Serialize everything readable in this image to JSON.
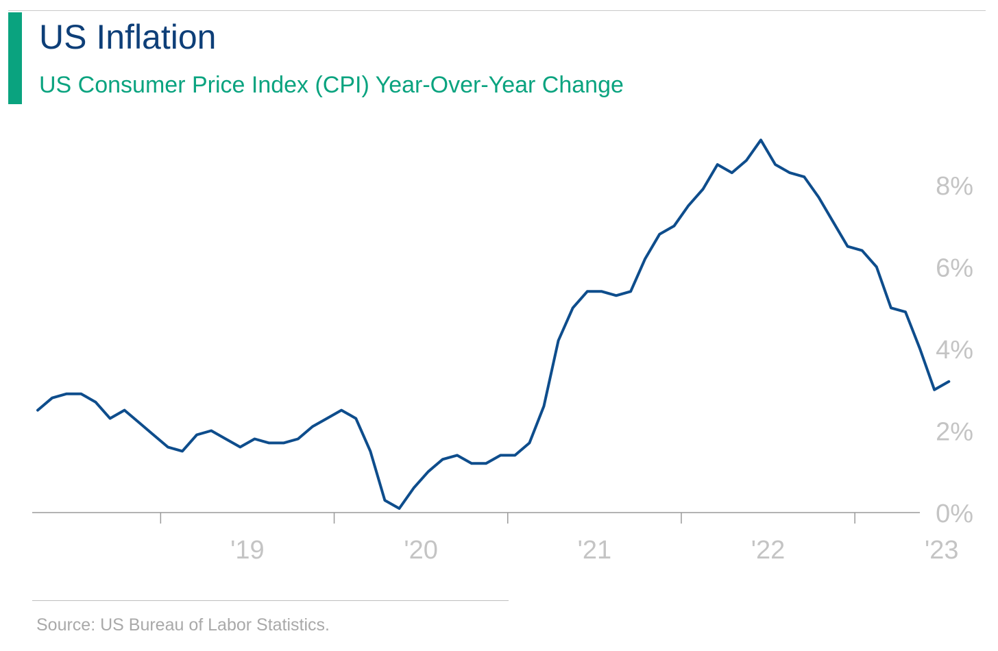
{
  "header": {
    "title": "US Inflation",
    "subtitle": "US Consumer Price Index (CPI) Year-Over-Year Change"
  },
  "footer": {
    "source": "Source: US Bureau of Labor Statistics."
  },
  "colors": {
    "accent": "#0aa37f",
    "title": "#0e3f78",
    "subtitle": "#0aa37f",
    "line": "#0e4d8c",
    "axis_text": "#c4c4c4",
    "axis_line": "#9a9a9a"
  },
  "chart_data": {
    "type": "line",
    "title": "US Inflation",
    "subtitle": "US Consumer Price Index (CPI) Year-Over-Year Change",
    "xlabel": "",
    "ylabel": "",
    "x_tick_labels": [
      "'19",
      "'20",
      "'21",
      "'22",
      "'23"
    ],
    "y_tick_labels": [
      "0%",
      "2%",
      "4%",
      "6%",
      "8%"
    ],
    "y_ticks": [
      0,
      2,
      4,
      6,
      8
    ],
    "ylim": [
      0,
      9.4
    ],
    "y_axis_position": "right",
    "grid": false,
    "legend": "none",
    "series": [
      {
        "x": [
          "2018-04",
          "2018-05",
          "2018-06",
          "2018-07",
          "2018-08",
          "2018-09",
          "2018-10",
          "2018-11",
          "2018-12",
          "2019-01",
          "2019-02",
          "2019-03",
          "2019-04",
          "2019-05",
          "2019-06",
          "2019-07",
          "2019-08",
          "2019-09",
          "2019-10",
          "2019-11",
          "2019-12",
          "2020-01",
          "2020-02",
          "2020-03",
          "2020-04",
          "2020-05",
          "2020-06",
          "2020-07",
          "2020-08",
          "2020-09",
          "2020-10",
          "2020-11",
          "2020-12",
          "2021-01",
          "2021-02",
          "2021-03",
          "2021-04",
          "2021-05",
          "2021-06",
          "2021-07",
          "2021-08",
          "2021-09",
          "2021-10",
          "2021-11",
          "2021-12",
          "2022-01",
          "2022-02",
          "2022-03",
          "2022-04",
          "2022-05",
          "2022-06",
          "2022-07",
          "2022-08",
          "2022-09",
          "2022-10",
          "2022-11",
          "2022-12",
          "2023-01",
          "2023-02",
          "2023-03",
          "2023-04",
          "2023-05",
          "2023-06",
          "2023-07"
        ],
        "values": [
          2.5,
          2.8,
          2.9,
          2.9,
          2.7,
          2.3,
          2.5,
          2.2,
          1.9,
          1.6,
          1.5,
          1.9,
          2.0,
          1.8,
          1.6,
          1.8,
          1.7,
          1.7,
          1.8,
          2.1,
          2.3,
          2.5,
          2.3,
          1.5,
          0.3,
          0.1,
          0.6,
          1.0,
          1.3,
          1.4,
          1.2,
          1.2,
          1.4,
          1.4,
          1.7,
          2.6,
          4.2,
          5.0,
          5.4,
          5.4,
          5.3,
          5.4,
          6.2,
          6.8,
          7.0,
          7.5,
          7.9,
          8.5,
          8.3,
          8.6,
          9.1,
          8.5,
          8.3,
          8.2,
          7.7,
          7.1,
          6.5,
          6.4,
          6.0,
          5.0,
          4.9,
          4.0,
          3.0,
          3.2
        ]
      }
    ]
  }
}
